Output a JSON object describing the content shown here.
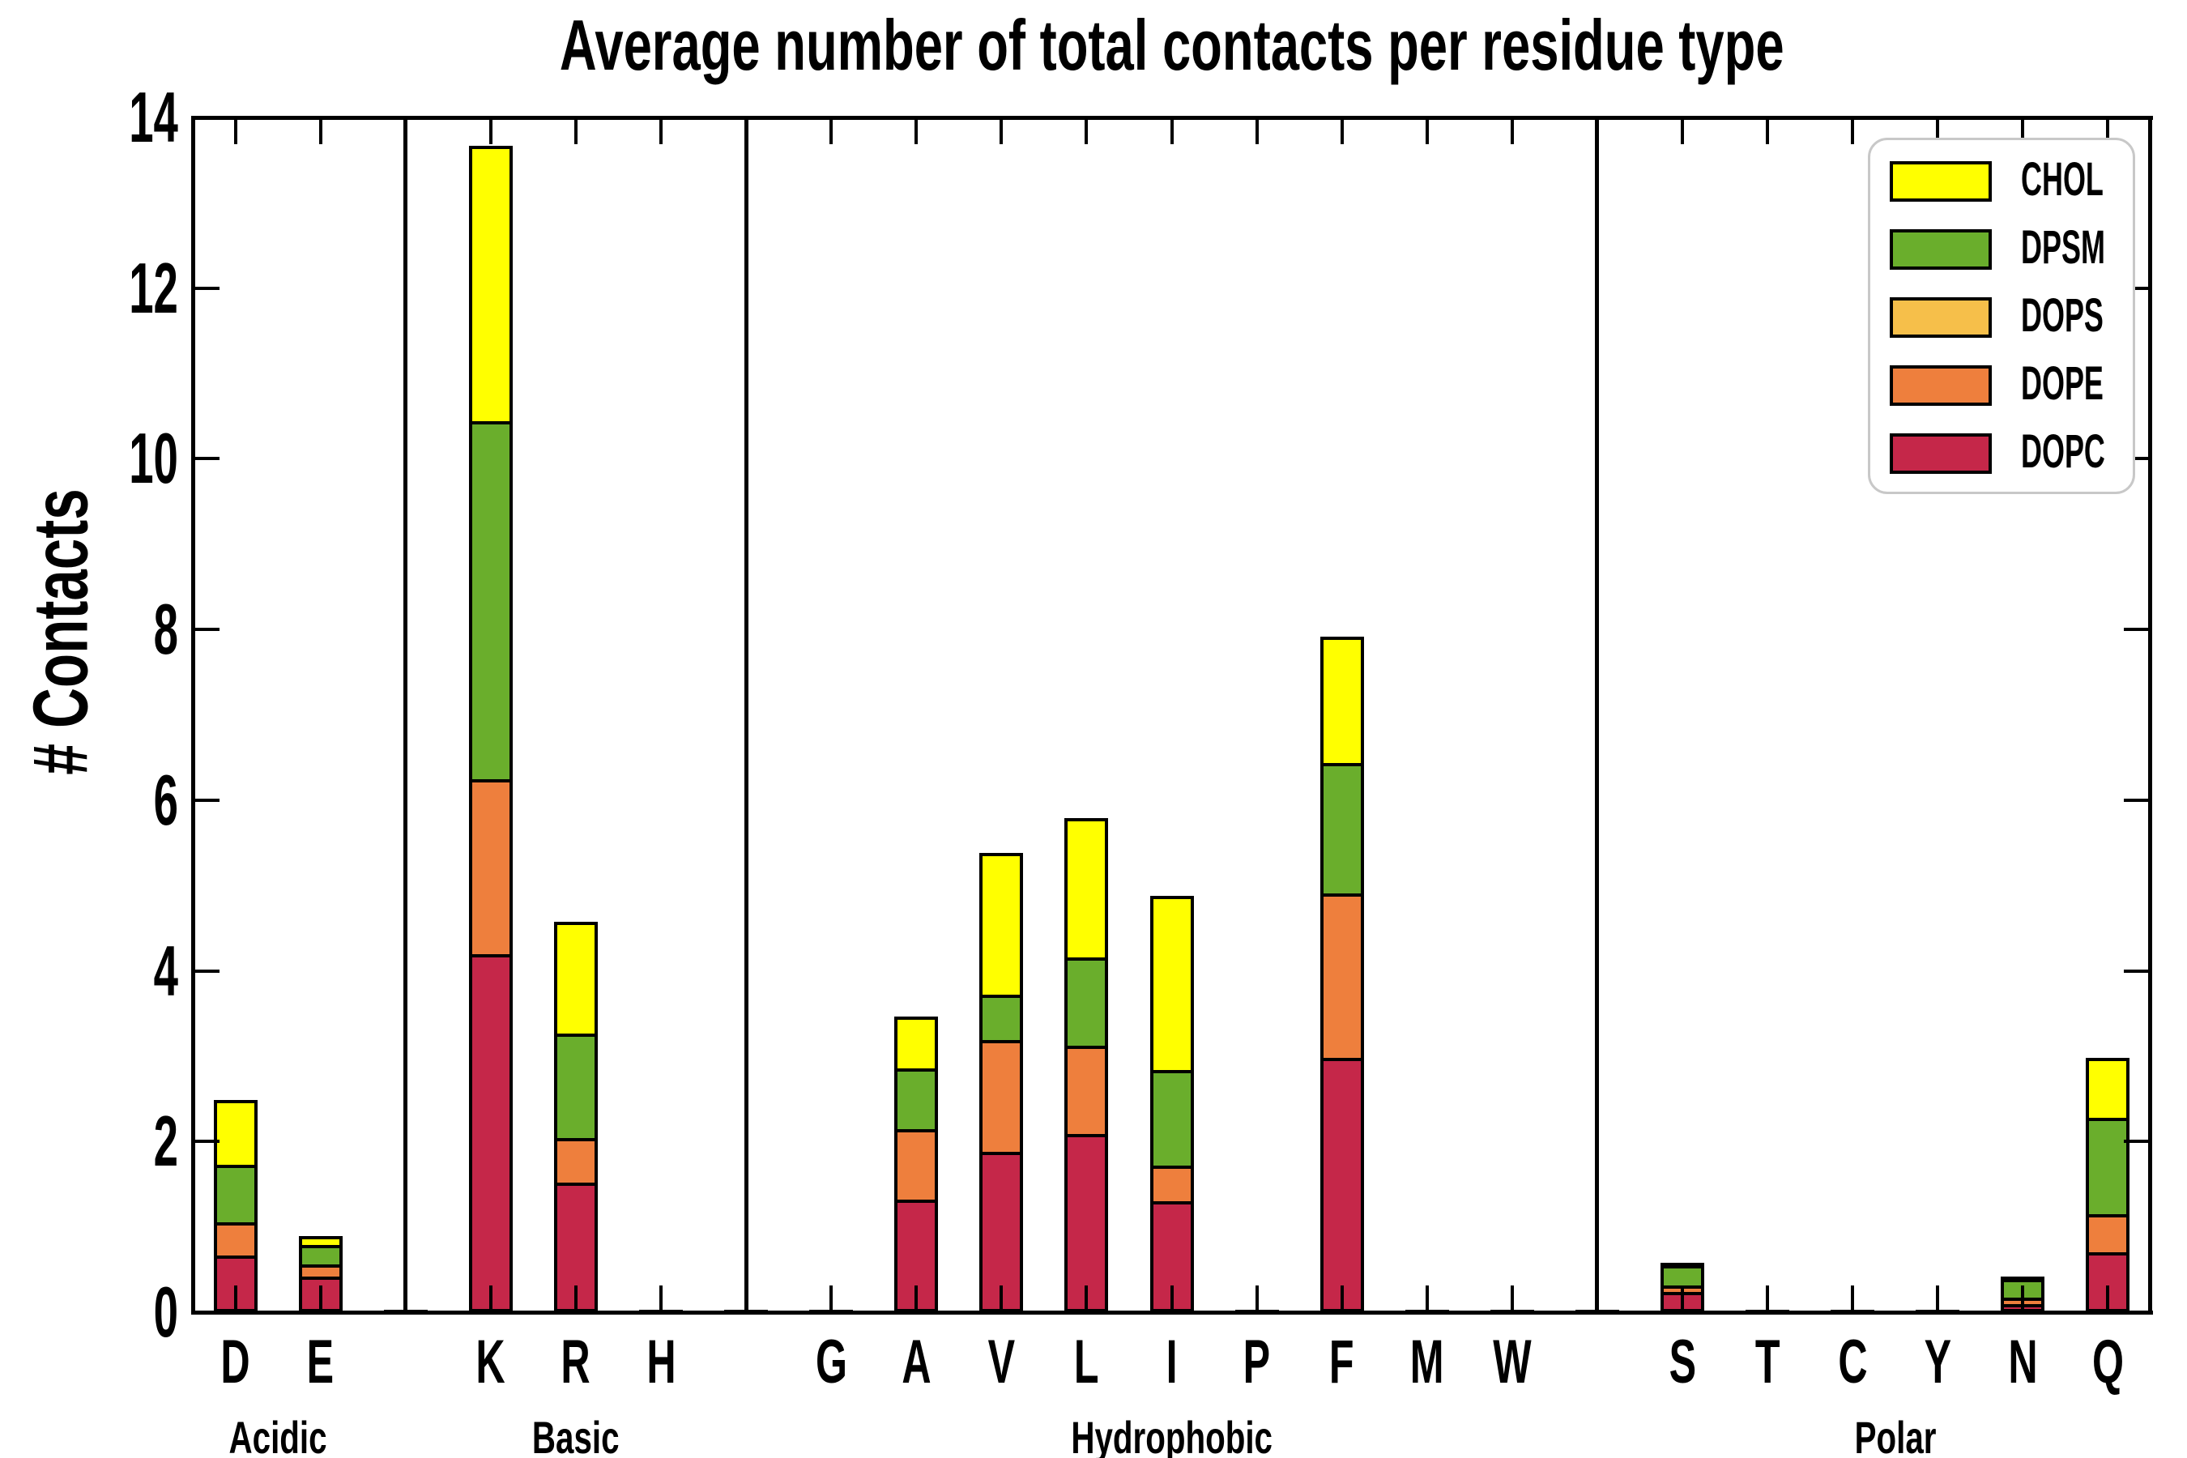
{
  "chart_data": {
    "type": "bar",
    "stacked": true,
    "title": "Average number of total contacts per residue type",
    "ylabel": "# Contacts",
    "xlabel": "",
    "ylim": [
      0,
      14
    ],
    "yticks": [
      0,
      2,
      4,
      6,
      8,
      10,
      12,
      14
    ],
    "grid": false,
    "legend_position": "upper right",
    "stack_order_bottom_to_top": [
      "DOPC",
      "DOPE",
      "DOPS",
      "DPSM",
      "CHOL"
    ],
    "legend_entries": [
      {
        "label": "CHOL",
        "color": "#ffff00"
      },
      {
        "label": "DPSM",
        "color": "#6aae2c"
      },
      {
        "label": "DOPS",
        "color": "#f6bf4a"
      },
      {
        "label": "DOPE",
        "color": "#ee7f3d"
      },
      {
        "label": "DOPC",
        "color": "#c52749"
      }
    ],
    "groups": [
      {
        "label": "Acidic",
        "residues": [
          "D",
          "E"
        ]
      },
      {
        "label": "Basic",
        "residues": [
          "K",
          "R",
          "H"
        ]
      },
      {
        "label": "Hydrophobic",
        "residues": [
          "G",
          "A",
          "V",
          "L",
          "I",
          "P",
          "F",
          "M",
          "W"
        ]
      },
      {
        "label": "Polar",
        "residues": [
          "S",
          "T",
          "C",
          "Y",
          "N",
          "Q"
        ]
      }
    ],
    "bars": {
      "D": {
        "DOPC": 0.65,
        "DOPE": 0.38,
        "DOPS": 0,
        "DPSM": 0.68,
        "CHOL": 0.76,
        "total": 2.47
      },
      "E": {
        "DOPC": 0.4,
        "DOPE": 0.14,
        "DOPS": 0,
        "DPSM": 0.23,
        "CHOL": 0.1,
        "total": 0.87
      },
      "K": {
        "DOPC": 4.18,
        "DOPE": 2.05,
        "DOPS": 0,
        "DPSM": 4.19,
        "CHOL": 3.23,
        "total": 13.65
      },
      "R": {
        "DOPC": 1.5,
        "DOPE": 0.52,
        "DOPS": 0,
        "DPSM": 1.23,
        "CHOL": 1.31,
        "total": 4.56
      },
      "H": {
        "DOPC": 0,
        "DOPE": 0,
        "DOPS": 0,
        "DPSM": 0,
        "CHOL": 0,
        "total": 0.03,
        "trace": 0.03
      },
      "G": {
        "DOPC": 0,
        "DOPE": 0,
        "DOPS": 0,
        "DPSM": 0,
        "CHOL": 0,
        "total": 0.03,
        "trace": 0.03
      },
      "A": {
        "DOPC": 1.3,
        "DOPE": 0.83,
        "DOPS": 0,
        "DPSM": 0.71,
        "CHOL": 0.61,
        "total": 3.45
      },
      "V": {
        "DOPC": 1.86,
        "DOPE": 1.31,
        "DOPS": 0,
        "DPSM": 0.53,
        "CHOL": 1.66,
        "total": 5.36
      },
      "L": {
        "DOPC": 2.07,
        "DOPE": 1.03,
        "DOPS": 0,
        "DPSM": 1.04,
        "CHOL": 1.63,
        "total": 5.77
      },
      "I": {
        "DOPC": 1.28,
        "DOPE": 0.42,
        "DOPS": 0,
        "DPSM": 1.12,
        "CHOL": 2.04,
        "total": 4.86
      },
      "P": {
        "DOPC": 0,
        "DOPE": 0,
        "DOPS": 0,
        "DPSM": 0,
        "CHOL": 0,
        "total": 0.03,
        "trace": 0.03
      },
      "F": {
        "DOPC": 2.96,
        "DOPE": 1.93,
        "DOPS": 0,
        "DPSM": 1.53,
        "CHOL": 1.48,
        "total": 7.9
      },
      "M": {
        "DOPC": 0,
        "DOPE": 0,
        "DOPS": 0,
        "DPSM": 0,
        "CHOL": 0,
        "total": 0.03,
        "trace": 0.03
      },
      "W": {
        "DOPC": 0,
        "DOPE": 0,
        "DOPS": 0,
        "DPSM": 0,
        "CHOL": 0,
        "total": 0.03,
        "trace": 0.03
      },
      "S": {
        "DOPC": 0.22,
        "DOPE": 0.07,
        "DOPS": 0,
        "DPSM": 0.24,
        "CHOL": 0.03,
        "total": 0.56
      },
      "T": {
        "DOPC": 0,
        "DOPE": 0,
        "DOPS": 0,
        "DPSM": 0,
        "CHOL": 0,
        "total": 0.02,
        "trace": 0.02
      },
      "C": {
        "DOPC": 0,
        "DOPE": 0,
        "DOPS": 0,
        "DPSM": 0,
        "CHOL": 0,
        "total": 0.02,
        "trace": 0.02
      },
      "Y": {
        "DOPC": 0,
        "DOPE": 0,
        "DOPS": 0,
        "DPSM": 0,
        "CHOL": 0,
        "total": 0.02,
        "trace": 0.02
      },
      "N": {
        "DOPC": 0.08,
        "DOPE": 0.07,
        "DOPS": 0,
        "DPSM": 0.22,
        "CHOL": 0.03,
        "total": 0.4
      },
      "Q": {
        "DOPC": 0.68,
        "DOPE": 0.45,
        "DOPS": 0,
        "DPSM": 1.13,
        "CHOL": 0.7,
        "total": 2.96
      }
    },
    "group_divider_trace_bars": [
      {
        "between": [
          "E",
          "K"
        ],
        "total": 0.03
      },
      {
        "between": [
          "H",
          "G"
        ],
        "total": 0.03
      },
      {
        "between": [
          "W",
          "S"
        ],
        "total": 0.03
      }
    ],
    "series_colors": {
      "CHOL": "#ffff00",
      "DPSM": "#6aae2c",
      "DOPS": "#f6bf4a",
      "DOPE": "#ee7f3d",
      "DOPC": "#c52749"
    },
    "axis_color": "#000000",
    "background_color": "#ffffff"
  }
}
